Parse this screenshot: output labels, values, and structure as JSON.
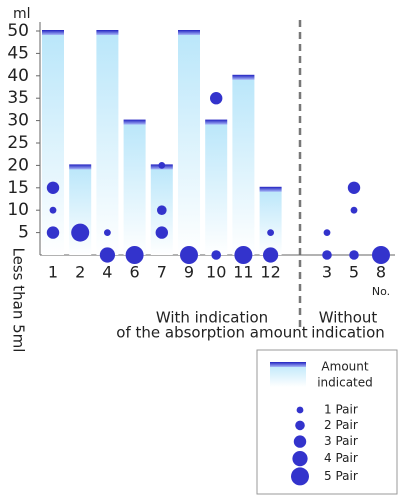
{
  "chart_data": {
    "type": "bar",
    "y_unit": "ml",
    "zero_label": "Less than 5ml",
    "categories": [
      "1",
      "2",
      "4",
      "6",
      "7",
      "9",
      "10",
      "11",
      "12",
      "3",
      "5",
      "8"
    ],
    "values": [
      50,
      20,
      50,
      30,
      20,
      50,
      30,
      40,
      15,
      null,
      null,
      null
    ],
    "x_suffix": "No.",
    "groups": [
      {
        "label_lines": [
          "With indication",
          "of the absorption amount"
        ]
      },
      {
        "label_lines": [
          "Without",
          "indication"
        ]
      }
    ],
    "points": {
      "x": [
        "1",
        "1",
        "1",
        "2",
        "4",
        "4",
        "6",
        "7",
        "7",
        "7",
        "9",
        "10",
        "10",
        "11",
        "12",
        "12",
        "3",
        "3",
        "5",
        "5",
        "5",
        "8"
      ],
      "y": [
        15,
        10,
        5,
        5,
        5,
        0,
        0,
        20,
        10,
        5,
        0,
        35,
        0,
        0,
        5,
        0,
        5,
        0,
        15,
        10,
        0,
        0
      ],
      "pairs": [
        3,
        1,
        3,
        5,
        1,
        4,
        5,
        1,
        2,
        3,
        5,
        3,
        2,
        5,
        1,
        4,
        1,
        2,
        3,
        1,
        2,
        5
      ]
    },
    "bar_color": "#3a3ad0",
    "fill_color": "#c9ecfb",
    "point_color": "#3333cc",
    "ylim": [
      0,
      50
    ],
    "yticks": [
      5,
      10,
      15,
      20,
      25,
      30,
      35,
      40,
      45,
      50
    ],
    "legend": {
      "bar_label": [
        "Amount",
        "indicated"
      ],
      "sizes": [
        {
          "value": 1,
          "label": "1 Pair"
        },
        {
          "value": 2,
          "label": "2 Pair"
        },
        {
          "value": 3,
          "label": "3 Pair"
        },
        {
          "value": 4,
          "label": "4 Pair"
        },
        {
          "value": 5,
          "label": "5 Pair"
        }
      ]
    }
  }
}
